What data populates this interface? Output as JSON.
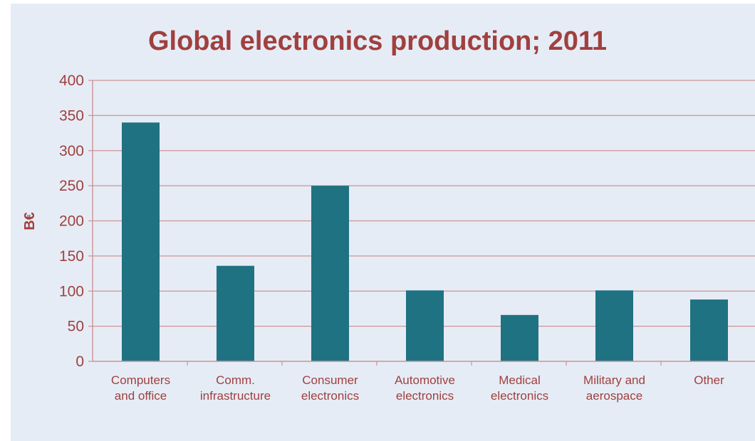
{
  "chart_data": {
    "type": "bar",
    "title": "Global electronics production; 2011",
    "xlabel": "",
    "ylabel": "B€",
    "categories": [
      [
        "Computers",
        "and office"
      ],
      [
        "Comm.",
        "infrastructure"
      ],
      [
        "Consumer",
        "electronics"
      ],
      [
        "Automotive",
        "electronics"
      ],
      [
        "Medical",
        "electronics"
      ],
      [
        "Military and",
        "aerospace"
      ],
      [
        "Other"
      ]
    ],
    "values": [
      340,
      136,
      250,
      101,
      66,
      101,
      88
    ],
    "ylim": [
      0,
      400
    ],
    "yticks": [
      "0",
      "50",
      "100",
      "150",
      "200",
      "250",
      "300",
      "350",
      "400"
    ],
    "grid": true,
    "legend": "none"
  },
  "colors": {
    "bar": "#1f7282",
    "grid": "#cc9494",
    "text": "#a0403f",
    "background": "#e6ecf5"
  }
}
